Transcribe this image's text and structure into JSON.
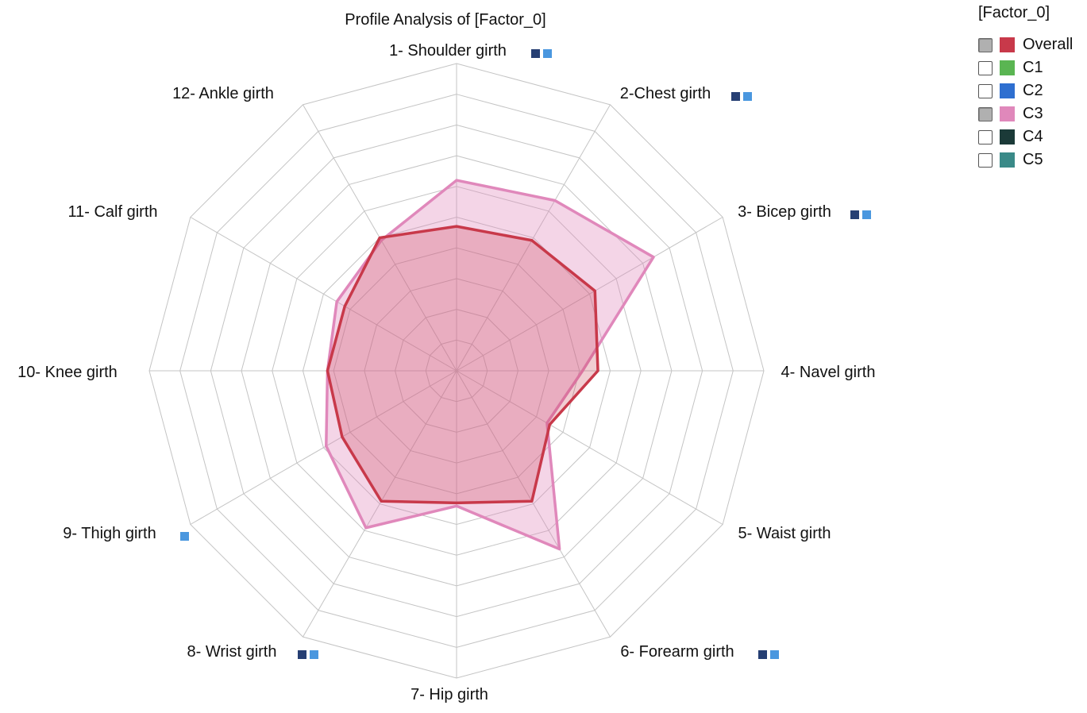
{
  "chart_data": {
    "type": "radar",
    "title": "Profile Analysis of [Factor_0]",
    "axes": [
      "1- Shoulder girth",
      "2-Chest girth",
      "3- Bicep girth",
      "4- Navel girth",
      "5- Waist girth",
      "6- Forearm girth",
      "7- Hip girth",
      "8- Wrist girth",
      "9- Thigh girth",
      "10- Knee girth",
      "11- Calf girth",
      "12- Ankle girth"
    ],
    "rmax": 10,
    "rings": 10,
    "axis_markers": [
      [
        "dark",
        "light"
      ],
      [
        "dark",
        "light"
      ],
      [
        "dark",
        "light"
      ],
      [],
      [],
      [
        "dark",
        "light"
      ],
      [],
      [
        "dark",
        "light"
      ],
      [
        "light"
      ],
      [],
      [],
      []
    ],
    "marker_colors": {
      "dark": "#263f73",
      "light": "#4a97df"
    },
    "series": [
      {
        "name": "Overall",
        "color": "#c8394a",
        "fill_opacity": 0.0,
        "values": [
          4.7,
          4.9,
          5.2,
          4.6,
          3.5,
          4.9,
          4.3,
          4.9,
          4.3,
          4.2,
          4.2,
          5.0
        ]
      },
      {
        "name": "C3",
        "color": "#e088bb",
        "fill_opacity": 0.35,
        "values": [
          6.2,
          6.4,
          7.4,
          4.1,
          3.4,
          6.7,
          4.4,
          5.9,
          4.9,
          4.2,
          4.5,
          4.9
        ]
      }
    ]
  },
  "legend": {
    "title": "[Factor_0]",
    "items": [
      {
        "name": "Overall",
        "color": "#c8394a",
        "checked": true
      },
      {
        "name": "C1",
        "color": "#5ab552",
        "checked": false
      },
      {
        "name": "C2",
        "color": "#2e6fd0",
        "checked": false
      },
      {
        "name": "C3",
        "color": "#e088bb",
        "checked": true
      },
      {
        "name": "C4",
        "color": "#1b3a38",
        "checked": false
      },
      {
        "name": "C5",
        "color": "#3a8a88",
        "checked": false
      }
    ]
  }
}
